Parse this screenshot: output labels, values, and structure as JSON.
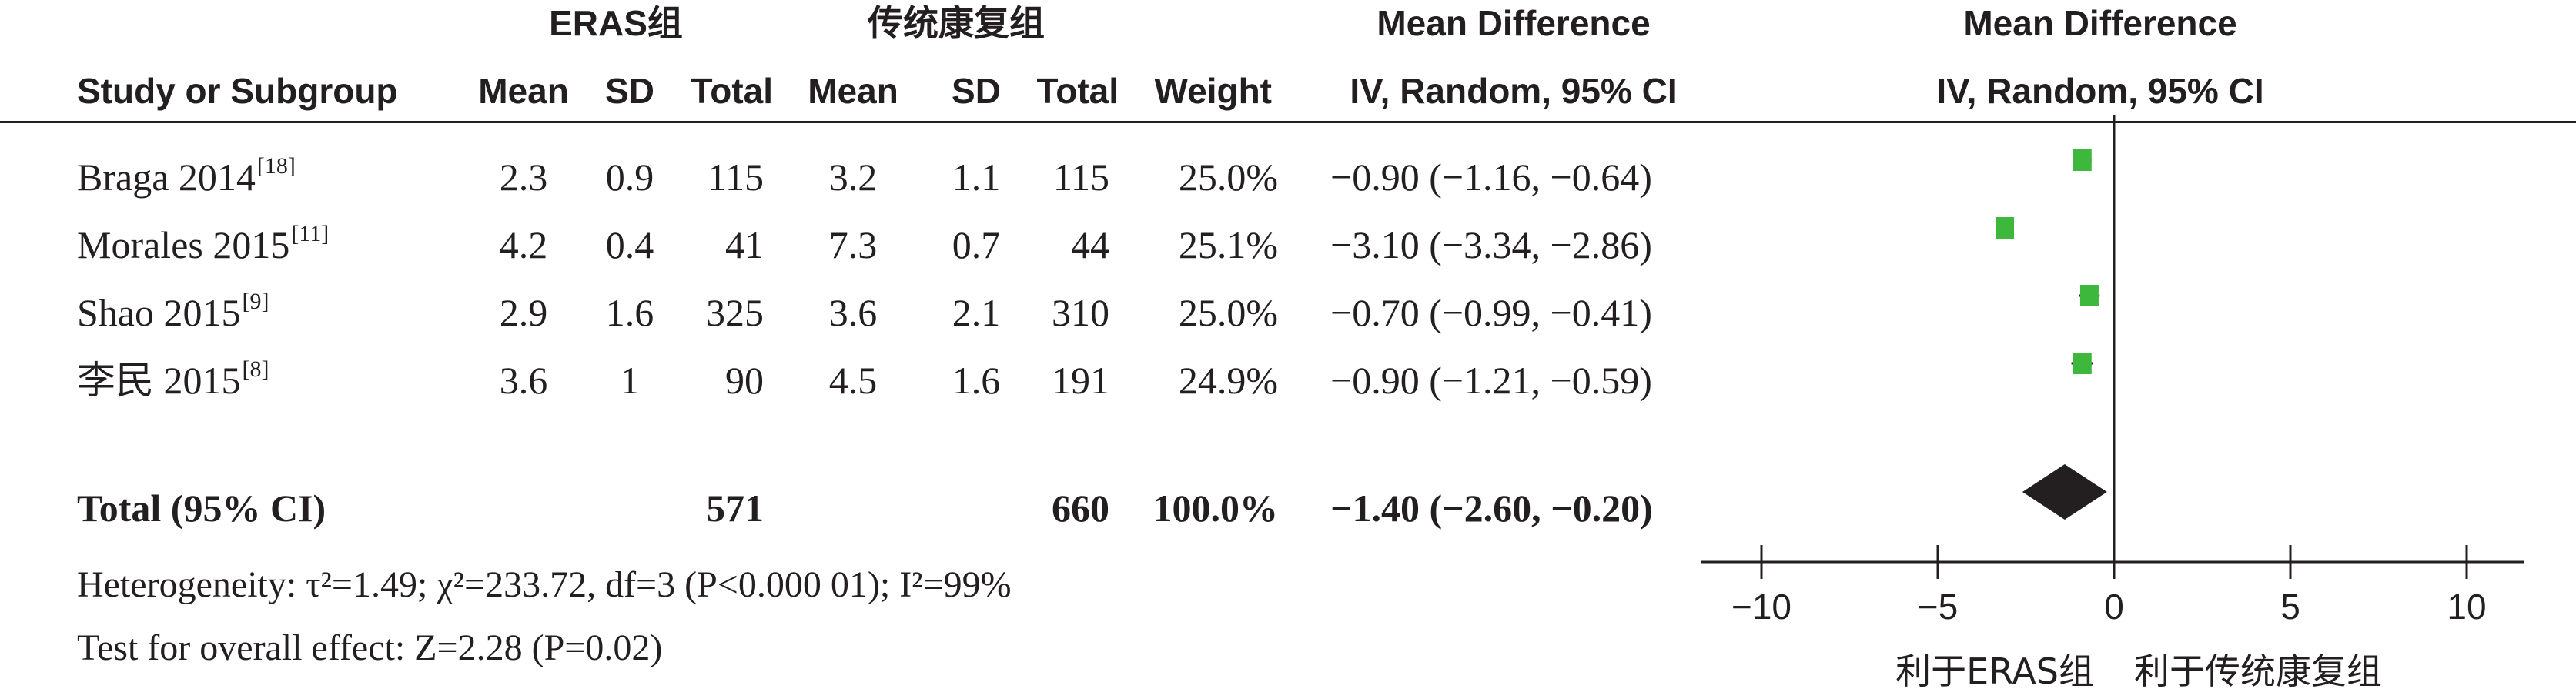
{
  "header": {
    "group1_title": "ERAS组",
    "group2_title": "传统康复组",
    "md_title": "Mean Difference",
    "md_subtitle": "IV, Random, 95% CI",
    "plot_title": "Mean Difference",
    "plot_subtitle": "IV, Random, 95% CI",
    "columns": {
      "study": "Study or Subgroup",
      "mean1": "Mean",
      "sd1": "SD",
      "total1": "Total",
      "mean2": "Mean",
      "sd2": "SD",
      "total2": "Total",
      "weight": "Weight"
    }
  },
  "studies": [
    {
      "name": "Braga 2014",
      "ref": "[18]",
      "mean1": "2.3",
      "sd1": "0.9",
      "total1": "115",
      "mean2": "3.2",
      "sd2": "1.1",
      "total2": "115",
      "weight": "25.0%",
      "ci": "−0.90 (−1.16, −0.64)"
    },
    {
      "name": "Morales 2015",
      "ref": "[11]",
      "mean1": "4.2",
      "sd1": "0.4",
      "total1": "41",
      "mean2": "7.3",
      "sd2": "0.7",
      "total2": "44",
      "weight": "25.1%",
      "ci": "−3.10 (−3.34, −2.86)"
    },
    {
      "name": "Shao 2015",
      "ref": "[9]",
      "mean1": "2.9",
      "sd1": "1.6",
      "total1": "325",
      "mean2": "3.6",
      "sd2": "2.1",
      "total2": "310",
      "weight": "25.0%",
      "ci": "−0.70 (−0.99, −0.41)"
    },
    {
      "name": "李民 2015",
      "ref": "[8]",
      "mean1": "3.6",
      "sd1": "1",
      "total1": "90",
      "mean2": "4.5",
      "sd2": "1.6",
      "total2": "191",
      "weight": "24.9%",
      "ci": "−0.90 (−1.21, −0.59)"
    }
  ],
  "total": {
    "label": "Total (95% CI)",
    "total1": "571",
    "total2": "660",
    "weight": "100.0%",
    "ci": "−1.40 (−2.60, −0.20)"
  },
  "footer": {
    "heterogeneity": "Heterogeneity: τ²=1.49; χ²=233.72, df=3 (P<0.000 01); I²=99%",
    "overall": "Test for overall effect: Z=2.28 (P=0.02)"
  },
  "chart_data": {
    "type": "forest",
    "title": "Mean Difference",
    "subtitle": "IV, Random, 95% CI",
    "xlim": [
      -12,
      12
    ],
    "ticks": [
      -10,
      -5,
      0,
      5,
      10
    ],
    "tick_labels": [
      "−10",
      "−5",
      "0",
      "5",
      "10"
    ],
    "favours_left": "利于ERAS组",
    "favours_right": "利于传统康复组",
    "studies": [
      {
        "name": "Braga 2014",
        "md": -0.9,
        "lower": -1.16,
        "upper": -0.64,
        "weight": 25.0
      },
      {
        "name": "Morales 2015",
        "md": -3.1,
        "lower": -3.34,
        "upper": -2.86,
        "weight": 25.1
      },
      {
        "name": "Shao 2015",
        "md": -0.7,
        "lower": -0.99,
        "upper": -0.41,
        "weight": 25.0
      },
      {
        "name": "李民 2015",
        "md": -0.9,
        "lower": -1.21,
        "upper": -0.59,
        "weight": 24.9
      }
    ],
    "pooled": {
      "md": -1.4,
      "lower": -2.6,
      "upper": -0.2
    },
    "colors": {
      "study_marker": "#3db83d",
      "pooled_marker": "#231f20",
      "axis": "#231f20"
    }
  }
}
